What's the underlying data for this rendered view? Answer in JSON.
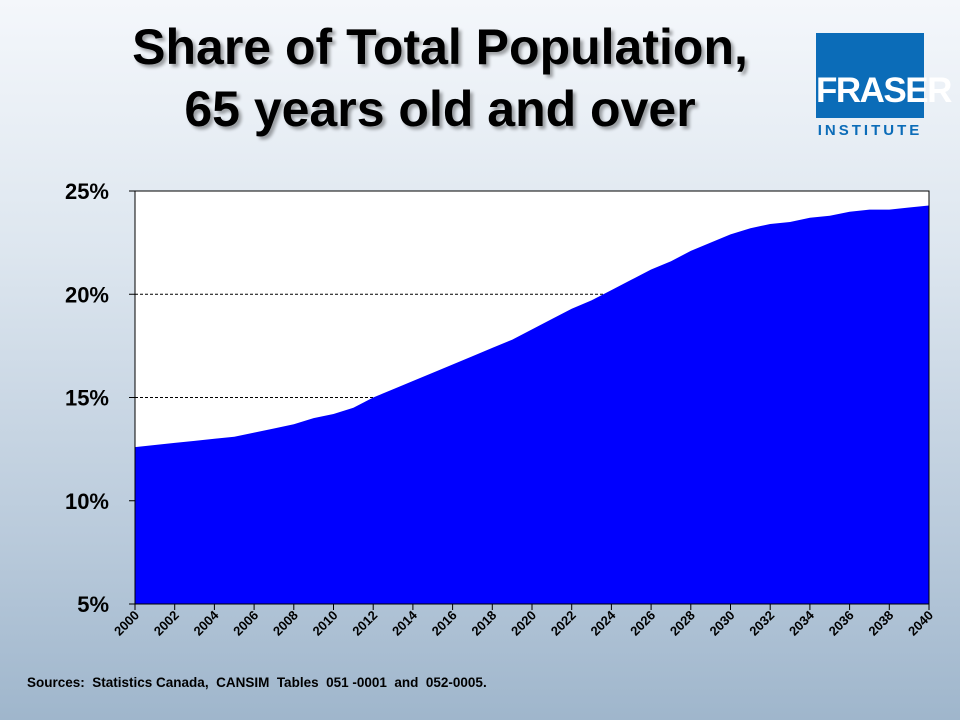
{
  "title_line1": "Share of Total Population,",
  "title_line2": "65 years old and over",
  "logo": {
    "name": "FRASER",
    "subtitle": "INSTITUTE",
    "color": "#0b6cb8"
  },
  "sources": "Sources:  Statistics Canada,  CANSIM  Tables  051 -0001  and  052-0005.",
  "chart_data": {
    "type": "area",
    "title": "Share of Total Population, 65 years old and over",
    "xlabel": "",
    "ylabel": "",
    "ylim": [
      5,
      25
    ],
    "yticks": [
      5,
      10,
      15,
      20,
      25
    ],
    "ytick_labels": [
      "5%",
      "10%",
      "15%",
      "20%",
      "25%"
    ],
    "xtick_labels": [
      "2000",
      "2002",
      "2004",
      "2006",
      "2008",
      "2010",
      "2012",
      "2014",
      "2016",
      "2018",
      "2020",
      "2022",
      "2024",
      "2026",
      "2028",
      "2030",
      "2032",
      "2034",
      "2036",
      "2038",
      "2040"
    ],
    "grid": "horizontal dashed",
    "fill_color": "#0000ff",
    "x": [
      2000,
      2001,
      2002,
      2003,
      2004,
      2005,
      2006,
      2007,
      2008,
      2009,
      2010,
      2011,
      2012,
      2013,
      2014,
      2015,
      2016,
      2017,
      2018,
      2019,
      2020,
      2021,
      2022,
      2023,
      2024,
      2025,
      2026,
      2027,
      2028,
      2029,
      2030,
      2031,
      2032,
      2033,
      2034,
      2035,
      2036,
      2037,
      2038,
      2039,
      2040
    ],
    "values": [
      12.6,
      12.7,
      12.8,
      12.9,
      13.0,
      13.1,
      13.3,
      13.5,
      13.7,
      14.0,
      14.2,
      14.5,
      15.0,
      15.4,
      15.8,
      16.2,
      16.6,
      17.0,
      17.4,
      17.8,
      18.3,
      18.8,
      19.3,
      19.7,
      20.2,
      20.7,
      21.2,
      21.6,
      22.1,
      22.5,
      22.9,
      23.2,
      23.4,
      23.5,
      23.7,
      23.8,
      24.0,
      24.1,
      24.1,
      24.2,
      24.3
    ]
  }
}
